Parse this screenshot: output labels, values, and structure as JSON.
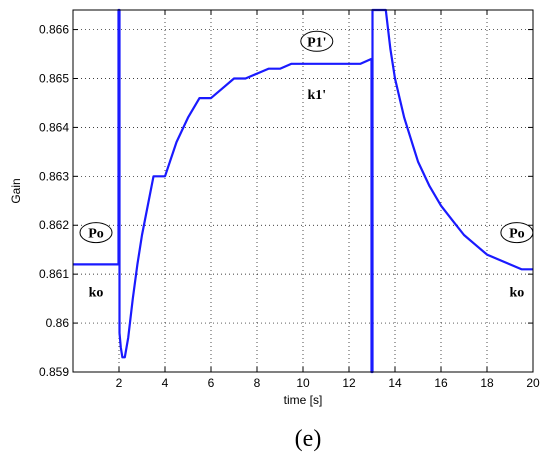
{
  "chart_data": {
    "type": "line",
    "title": "",
    "xlabel": "time [s]",
    "ylabel": "Gain",
    "xlim": [
      0,
      20
    ],
    "ylim": [
      0.859,
      0.8664
    ],
    "xticks": [
      2,
      4,
      6,
      8,
      10,
      12,
      14,
      16,
      18,
      20
    ],
    "yticks": [
      0.859,
      0.86,
      0.861,
      0.862,
      0.863,
      0.864,
      0.865,
      0.866
    ],
    "grid": true,
    "line_color": "#1a1aff",
    "series": [
      {
        "x": [
          0,
          1,
          1.9,
          1.98,
          1.98,
          2.02,
          2.02,
          2.08,
          2.15,
          2.25,
          2.4,
          2.6,
          2.8,
          3,
          3.5,
          4,
          4.5,
          5,
          5.5,
          6,
          6.5,
          7,
          7.5,
          8,
          8.5,
          9,
          9.5,
          10,
          10.5,
          11,
          11.5,
          12,
          12.5,
          12.98,
          12.98,
          13.02,
          13.02,
          13.6,
          13.7,
          13.8,
          14,
          14.2,
          14.4,
          14.6,
          14.8,
          15,
          15.5,
          16,
          16.5,
          17,
          17.5,
          18,
          18.5,
          19,
          19.5,
          20
        ],
        "y": [
          0.8612,
          0.8612,
          0.8612,
          0.8612,
          0.8664,
          0.8664,
          0.8598,
          0.8595,
          0.8593,
          0.8593,
          0.8597,
          0.8605,
          0.8612,
          0.8618,
          0.863,
          0.863,
          0.8637,
          0.8642,
          0.8646,
          0.8646,
          0.8648,
          0.865,
          0.865,
          0.8651,
          0.8652,
          0.8652,
          0.8653,
          0.8653,
          0.8653,
          0.8653,
          0.8653,
          0.8653,
          0.8653,
          0.8654,
          0.859,
          0.859,
          0.8664,
          0.8664,
          0.866,
          0.8656,
          0.865,
          0.8646,
          0.8642,
          0.8639,
          0.8636,
          0.8633,
          0.8628,
          0.8624,
          0.8621,
          0.8618,
          0.8616,
          0.8614,
          0.8613,
          0.8612,
          0.8611,
          0.8611
        ]
      }
    ],
    "annotations": [
      {
        "id": "po-left",
        "text": "Po",
        "x": 1.0,
        "y": 0.86185,
        "boxed": true
      },
      {
        "id": "ko-left",
        "text": "ko",
        "x": 1.0,
        "y": 0.86065,
        "boxed": false
      },
      {
        "id": "p1-prime",
        "text": "P1'",
        "x": 10.6,
        "y": 0.86576,
        "boxed": true
      },
      {
        "id": "k1-prime",
        "text": "k1'",
        "x": 10.6,
        "y": 0.86468,
        "boxed": false
      },
      {
        "id": "po-right",
        "text": "Po",
        "x": 19.3,
        "y": 0.86185,
        "boxed": true
      },
      {
        "id": "ko-right",
        "text": "ko",
        "x": 19.3,
        "y": 0.86065,
        "boxed": false
      }
    ]
  },
  "panel_label": "(e)"
}
